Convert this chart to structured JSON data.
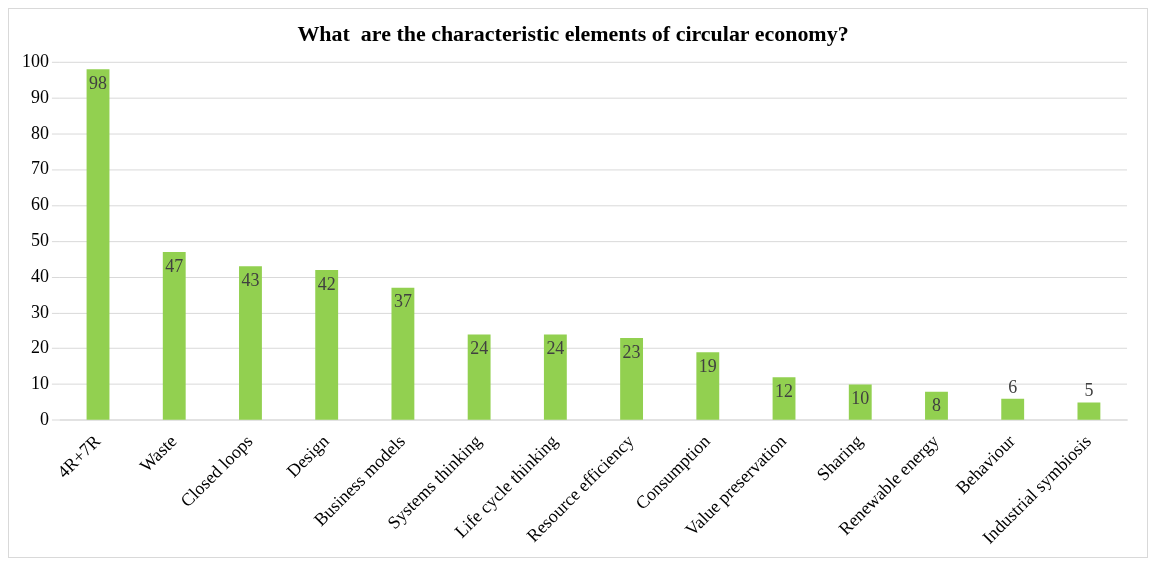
{
  "chart_data": {
    "type": "bar",
    "title": "What  are the characteristic elements of circular economy?",
    "categories": [
      "4R+7R",
      "Waste",
      "Closed loops",
      "Design",
      "Business models",
      "Systems thinking",
      "Life cycle thinking",
      "Resource efficiency",
      "Consumption",
      "Value preservation",
      "Sharing",
      "Renewable energy",
      "Behaviour",
      "Industrial symbiosis"
    ],
    "values": [
      98,
      47,
      43,
      42,
      37,
      24,
      24,
      23,
      19,
      12,
      10,
      8,
      6,
      5
    ],
    "color": "#92d050",
    "ylim": [
      0,
      100
    ],
    "yticks": [
      0,
      10,
      20,
      30,
      40,
      50,
      60,
      70,
      80,
      90,
      100
    ],
    "grid": "y",
    "legend": false,
    "data_labels": true
  }
}
